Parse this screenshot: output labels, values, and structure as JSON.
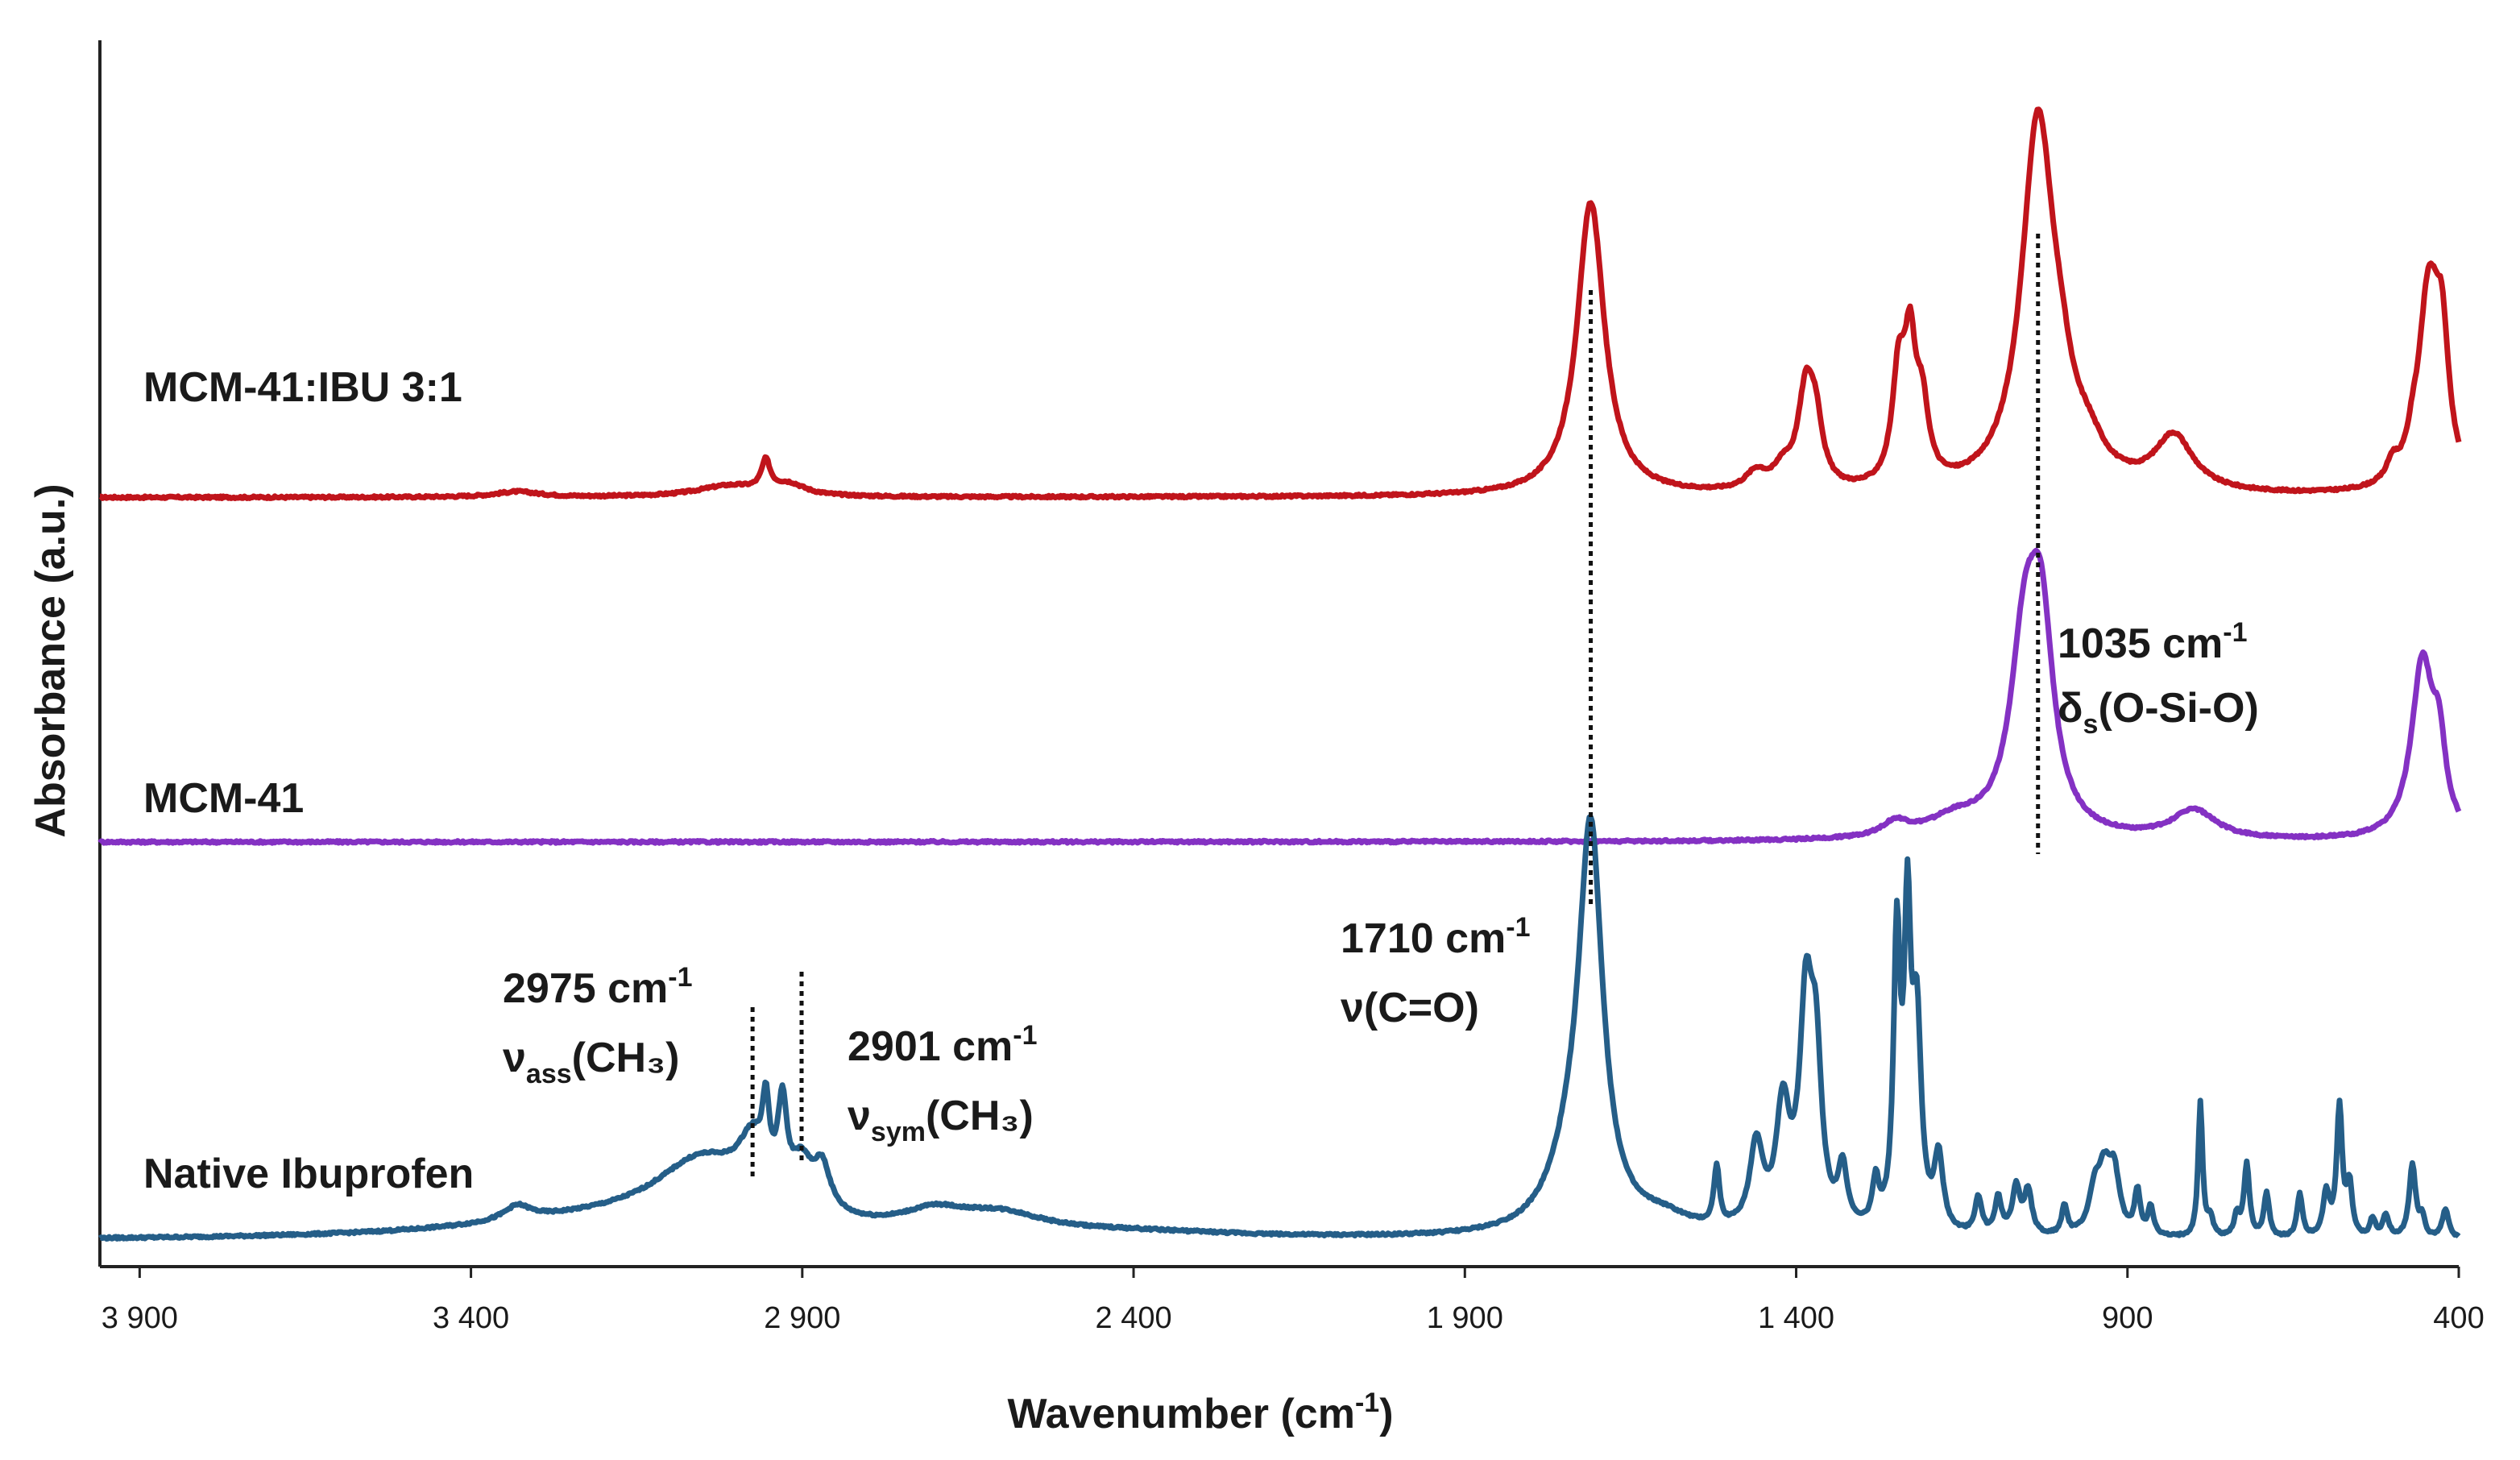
{
  "chart_data": {
    "type": "line",
    "title": "",
    "xlabel": "Wavenumber (cm⁻¹)",
    "ylabel": "Absorbance (a.u.)",
    "xlim": [
      3960,
      400
    ],
    "x_direction": "reversed",
    "x_ticks": [
      3900,
      3400,
      2900,
      2400,
      1900,
      1400,
      900,
      400
    ],
    "x_tick_labels": [
      "3 900",
      "3 400",
      "2 900",
      "2 400",
      "1 900",
      "1 400",
      "900",
      "400"
    ],
    "y_ticks": "none",
    "series": [
      {
        "name": "MCM-41:IBU 3:1",
        "color": "#c0141b",
        "offset": 2.05,
        "baseline": 0.0,
        "peaks": [
          [
            3330,
            0.015,
            40
          ],
          [
            3010,
            0.03,
            60
          ],
          [
            2955,
            0.08,
            8
          ],
          [
            2920,
            0.03,
            30
          ],
          [
            1710,
            0.81,
            25
          ],
          [
            1460,
            0.05,
            20
          ],
          [
            1420,
            0.05,
            15
          ],
          [
            1385,
            0.27,
            15
          ],
          [
            1370,
            0.14,
            12
          ],
          [
            1245,
            0.3,
            12
          ],
          [
            1228,
            0.33,
            10
          ],
          [
            1210,
            0.2,
            12
          ],
          [
            1035,
            1.02,
            30
          ],
          [
            1000,
            0.12,
            20
          ],
          [
            960,
            0.08,
            30
          ],
          [
            830,
            0.15,
            35
          ],
          [
            500,
            0.05,
            10
          ],
          [
            470,
            0.04,
            8
          ],
          [
            445,
            0.55,
            20
          ],
          [
            425,
            0.3,
            12
          ]
        ]
      },
      {
        "name": "MCM-41",
        "color": "#8431c3",
        "offset": 1.1,
        "baseline": 0.0,
        "peaks": [
          [
            1250,
            0.04,
            25
          ],
          [
            1160,
            0.05,
            50
          ],
          [
            1055,
            0.5,
            26
          ],
          [
            1030,
            0.5,
            22
          ],
          [
            800,
            0.08,
            40
          ],
          [
            455,
            0.48,
            20
          ],
          [
            430,
            0.2,
            12
          ]
        ]
      },
      {
        "name": "Native Ibuprofen",
        "color": "#255e88",
        "offset": 0.0,
        "baseline": 0.0,
        "peaks": [
          [
            3330,
            0.04,
            25
          ],
          [
            3200,
            0.05,
            260
          ],
          [
            3050,
            0.18,
            90
          ],
          [
            2975,
            0.15,
            25
          ],
          [
            2955,
            0.19,
            6
          ],
          [
            2930,
            0.24,
            8
          ],
          [
            2901,
            0.12,
            20
          ],
          [
            2870,
            0.12,
            15
          ],
          [
            2700,
            0.05,
            60
          ],
          [
            2600,
            0.05,
            80
          ],
          [
            2400,
            0.015,
            200
          ],
          [
            1710,
            1.06,
            22
          ],
          [
            1740,
            0.15,
            40
          ],
          [
            1600,
            0.04,
            50
          ],
          [
            1520,
            0.16,
            5
          ],
          [
            1460,
            0.23,
            12
          ],
          [
            1420,
            0.32,
            12
          ],
          [
            1385,
            0.6,
            12
          ],
          [
            1370,
            0.4,
            10
          ],
          [
            1330,
            0.16,
            8
          ],
          [
            1280,
            0.12,
            6
          ],
          [
            1248,
            0.78,
            6
          ],
          [
            1232,
            0.8,
            6
          ],
          [
            1218,
            0.55,
            8
          ],
          [
            1185,
            0.2,
            8
          ],
          [
            1125,
            0.1,
            6
          ],
          [
            1095,
            0.1,
            6
          ],
          [
            1068,
            0.13,
            7
          ],
          [
            1050,
            0.12,
            7
          ],
          [
            995,
            0.08,
            5
          ],
          [
            950,
            0.1,
            10
          ],
          [
            935,
            0.16,
            12
          ],
          [
            920,
            0.15,
            10
          ],
          [
            885,
            0.12,
            5
          ],
          [
            865,
            0.08,
            5
          ],
          [
            790,
            0.37,
            4
          ],
          [
            775,
            0.05,
            5
          ],
          [
            735,
            0.06,
            5
          ],
          [
            720,
            0.2,
            5
          ],
          [
            690,
            0.12,
            5
          ],
          [
            640,
            0.12,
            5
          ],
          [
            600,
            0.12,
            6
          ],
          [
            580,
            0.36,
            5
          ],
          [
            565,
            0.14,
            5
          ],
          [
            530,
            0.05,
            5
          ],
          [
            510,
            0.06,
            6
          ],
          [
            470,
            0.2,
            6
          ],
          [
            455,
            0.05,
            5
          ],
          [
            420,
            0.08,
            6
          ]
        ]
      }
    ],
    "legend": "inline labels at left of each trace",
    "annotations": [
      {
        "id": "a1710",
        "line1": "1710 cm",
        "sup1": "-1",
        "line2_main": "ν(C=O)",
        "line2_sub": "",
        "line2_end": "",
        "x": 1710
      },
      {
        "id": "a1035",
        "line1": "1035 cm",
        "sup1": "-1",
        "line2_main": "δ",
        "line2_sub": "s",
        "line2_end": "(O-Si-O)",
        "x": 1035
      },
      {
        "id": "a2975",
        "line1": "2975 cm",
        "sup1": "-1",
        "line2_main": "ν",
        "line2_sub": "ass",
        "line2_end": "(CH₃)",
        "x": 2975
      },
      {
        "id": "a2901",
        "line1": "2901 cm",
        "sup1": "-1",
        "line2_main": "ν",
        "line2_sub": "sym",
        "line2_end": "(CH₃)",
        "x": 2901
      }
    ]
  }
}
